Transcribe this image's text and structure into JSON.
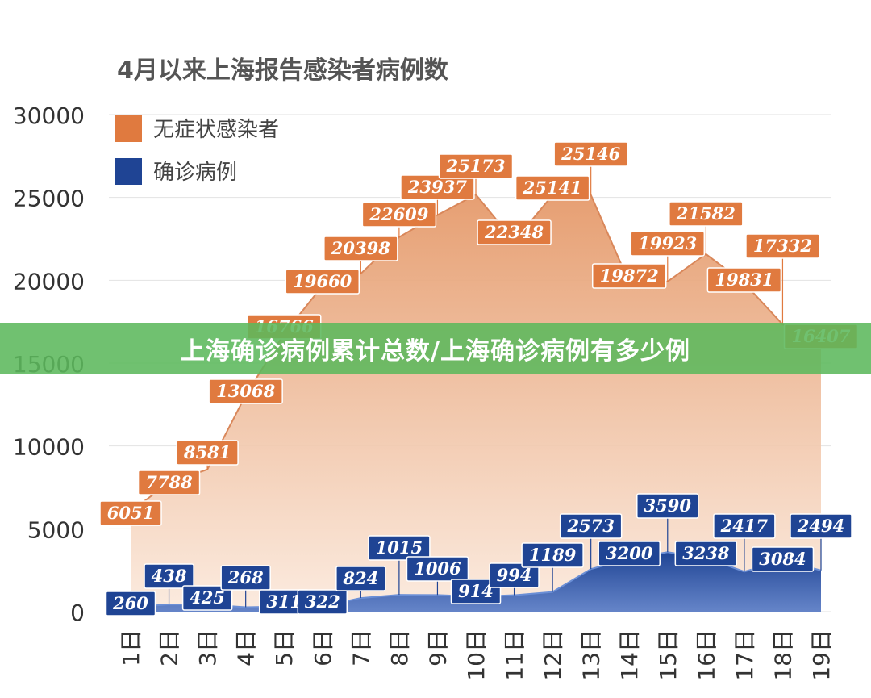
{
  "banner": {
    "text": "上海确诊病例累计总数/上海确诊病例有多少例"
  },
  "colors": {
    "asymptomatic": "#e07a3f",
    "confirmed": "#1f4494",
    "grid": "#e2e2e2",
    "axis_text": "#333333",
    "title_text": "#555555"
  },
  "chart_data": {
    "type": "area",
    "title": "4月以来上海报告感染者病例数",
    "categories": [
      "1日",
      "2日",
      "3日",
      "4日",
      "5日",
      "6日",
      "7日",
      "8日",
      "9日",
      "10日",
      "11日",
      "12日",
      "13日",
      "14日",
      "15日",
      "16日",
      "17日",
      "18日",
      "19日"
    ],
    "ylim": [
      0,
      30000
    ],
    "yticks": [
      "0",
      "5000",
      "10000",
      "15000",
      "20000",
      "25000",
      "30000"
    ],
    "grid": true,
    "legend_position": "top-left",
    "series": [
      {
        "name": "无症状感染者",
        "values": [
          6051,
          7788,
          8581,
          13068,
          16766,
          19660,
          20398,
          22609,
          23937,
          25173,
          22348,
          25141,
          25146,
          19872,
          19923,
          21582,
          19831,
          17332,
          16407
        ],
        "labels": [
          "6051",
          "7788",
          "8581",
          "13068",
          "16766",
          "19660",
          "20398",
          "22609",
          "23937",
          "25173",
          "22348",
          "25141",
          "25146",
          "19872",
          "19923",
          "21582",
          "19831",
          "17332",
          "16407"
        ]
      },
      {
        "name": "确诊病例",
        "values": [
          260,
          438,
          425,
          268,
          311,
          322,
          824,
          1015,
          1006,
          914,
          994,
          1189,
          2573,
          3200,
          3590,
          3238,
          2417,
          3084,
          2494
        ],
        "labels": [
          "260",
          "438",
          "425",
          "268",
          "311",
          "322",
          "824",
          "1015",
          "1006",
          "914",
          "994",
          "1189",
          "2573",
          "3200",
          "3590",
          "3238",
          "2417",
          "3084",
          "2494"
        ]
      }
    ]
  }
}
